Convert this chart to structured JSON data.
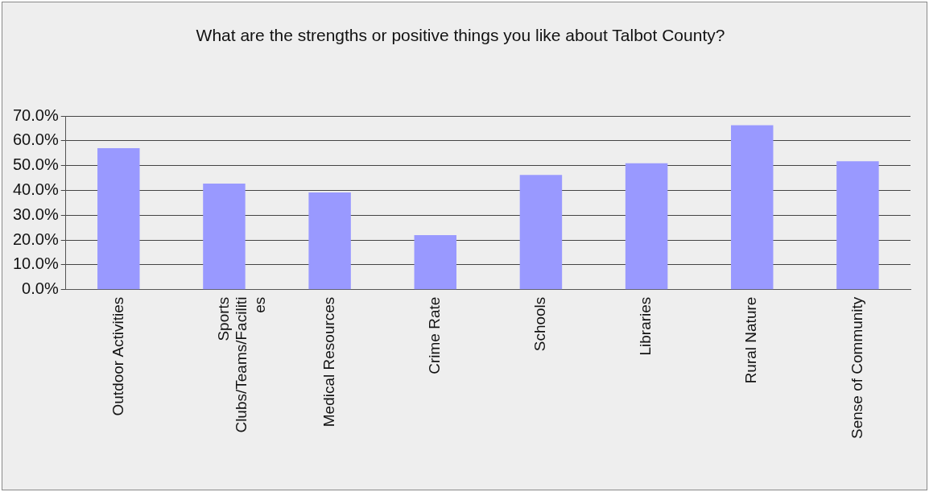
{
  "chart_data": {
    "type": "bar",
    "title": "What are the strengths or positive things you like about Talbot County?",
    "categories": [
      "Outdoor Activities",
      "Sports Clubs/Teams/Facilities",
      "Medical Resources",
      "Crime Rate",
      "Schools",
      "Libraries",
      "Rural Nature",
      "Sense of Community"
    ],
    "values": [
      57.1,
      42.8,
      39.2,
      22.0,
      46.3,
      51.0,
      66.3,
      51.8
    ],
    "color": "#9999ff",
    "ylim": [
      0,
      70
    ],
    "yticks": [
      {
        "value": 0,
        "label": "0.0%"
      },
      {
        "value": 10,
        "label": "10.0%"
      },
      {
        "value": 20,
        "label": "20.0%"
      },
      {
        "value": 30,
        "label": "30.0%"
      },
      {
        "value": 40,
        "label": "40.0%"
      },
      {
        "value": 50,
        "label": "50.0%"
      },
      {
        "value": 60,
        "label": "60.0%"
      },
      {
        "value": 70,
        "label": "70.0%"
      }
    ],
    "grid": "y",
    "legend": false
  }
}
